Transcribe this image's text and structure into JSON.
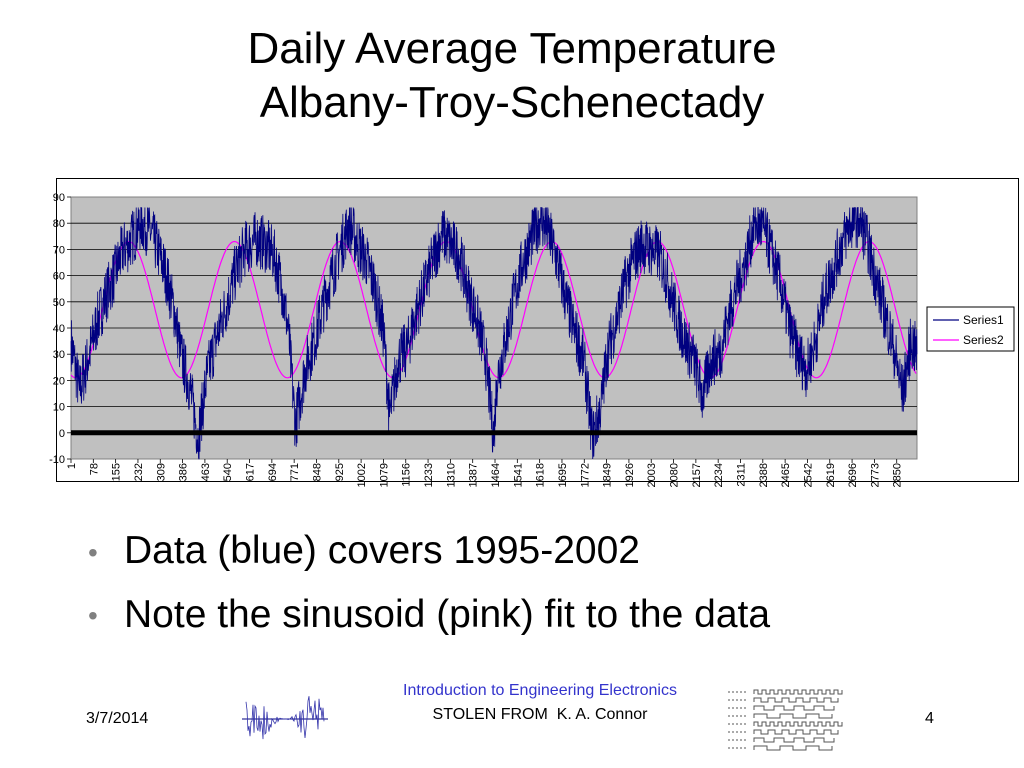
{
  "slide": {
    "title_line1": "Daily Average Temperature",
    "title_line2": "Albany-Troy-Schenectady",
    "bullets": [
      "Data (blue) covers 1995-2002",
      "Note the sinusoid (pink) fit to the data"
    ],
    "footer": {
      "date": "3/7/2014",
      "course": "Introduction to Engineering Electronics",
      "stolen_label": "STOLEN FROM",
      "author": "K. A. Connor",
      "page": "4"
    }
  },
  "colors": {
    "series1": "#000080",
    "series2": "#ff00ff",
    "plot_background": "#c0c0c0",
    "course_text": "#3333cc"
  },
  "chart_data": {
    "type": "line",
    "title": "",
    "xlabel": "",
    "ylabel": "",
    "ylim": [
      -10,
      90
    ],
    "yticks": [
      -10,
      0,
      10,
      20,
      30,
      40,
      50,
      60,
      70,
      80,
      90
    ],
    "xlim": [
      1,
      2920
    ],
    "xtick_labels": [
      "1",
      "78",
      "155",
      "232",
      "309",
      "386",
      "463",
      "540",
      "617",
      "694",
      "771",
      "848",
      "925",
      "1002",
      "1079",
      "1156",
      "1233",
      "1310",
      "1387",
      "1464",
      "1541",
      "1618",
      "1695",
      "1772",
      "1849",
      "1926",
      "2003",
      "2080",
      "2157",
      "2234",
      "2311",
      "2388",
      "2465",
      "2542",
      "2619",
      "2696",
      "2773",
      "2850"
    ],
    "grid": true,
    "legend_position": "right",
    "series": [
      {
        "name": "Series1",
        "description_in_chart": "daily average temperature data",
        "x": [
          1,
          30,
          60,
          90,
          120,
          150,
          180,
          200,
          240,
          270,
          300,
          330,
          360,
          380,
          410,
          440,
          470,
          500,
          540,
          570,
          600,
          640,
          670,
          700,
          730,
          750,
          775,
          810,
          840,
          870,
          900,
          930,
          960,
          990,
          1020,
          1050,
          1080,
          1100,
          1130,
          1160,
          1190,
          1220,
          1250,
          1280,
          1310,
          1340,
          1370,
          1400,
          1430,
          1460,
          1470,
          1500,
          1530,
          1560,
          1590,
          1620,
          1650,
          1680,
          1710,
          1740,
          1770,
          1800,
          1830,
          1850,
          1880,
          1910,
          1940,
          1970,
          2000,
          2030,
          2060,
          2090,
          2120,
          2150,
          2180,
          2210,
          2240,
          2270,
          2300,
          2330,
          2360,
          2390,
          2420,
          2450,
          2480,
          2510,
          2540,
          2570,
          2600,
          2630,
          2660,
          2690,
          2720,
          2750,
          2780,
          2810,
          2840,
          2870,
          2900,
          2920
        ],
        "y": [
          35,
          16,
          28,
          42,
          52,
          60,
          70,
          72,
          80,
          78,
          70,
          60,
          45,
          30,
          18,
          -2,
          22,
          35,
          50,
          62,
          70,
          74,
          72,
          68,
          55,
          40,
          3,
          25,
          35,
          48,
          60,
          70,
          80,
          72,
          66,
          55,
          38,
          6,
          28,
          32,
          45,
          55,
          66,
          76,
          72,
          68,
          55,
          44,
          30,
          -2,
          20,
          35,
          52,
          65,
          74,
          82,
          76,
          65,
          50,
          38,
          28,
          -2,
          10,
          30,
          42,
          56,
          66,
          72,
          70,
          68,
          58,
          45,
          35,
          28,
          14,
          28,
          30,
          45,
          56,
          66,
          80,
          78,
          68,
          56,
          40,
          30,
          24,
          35,
          52,
          62,
          72,
          80,
          82,
          72,
          58,
          45,
          32,
          15,
          35,
          30
        ]
      },
      {
        "name": "Series2",
        "description_in_chart": "sinusoid fit",
        "mean": 47,
        "amplitude": 26,
        "period_days": 365,
        "peak_day": 200
      }
    ]
  }
}
